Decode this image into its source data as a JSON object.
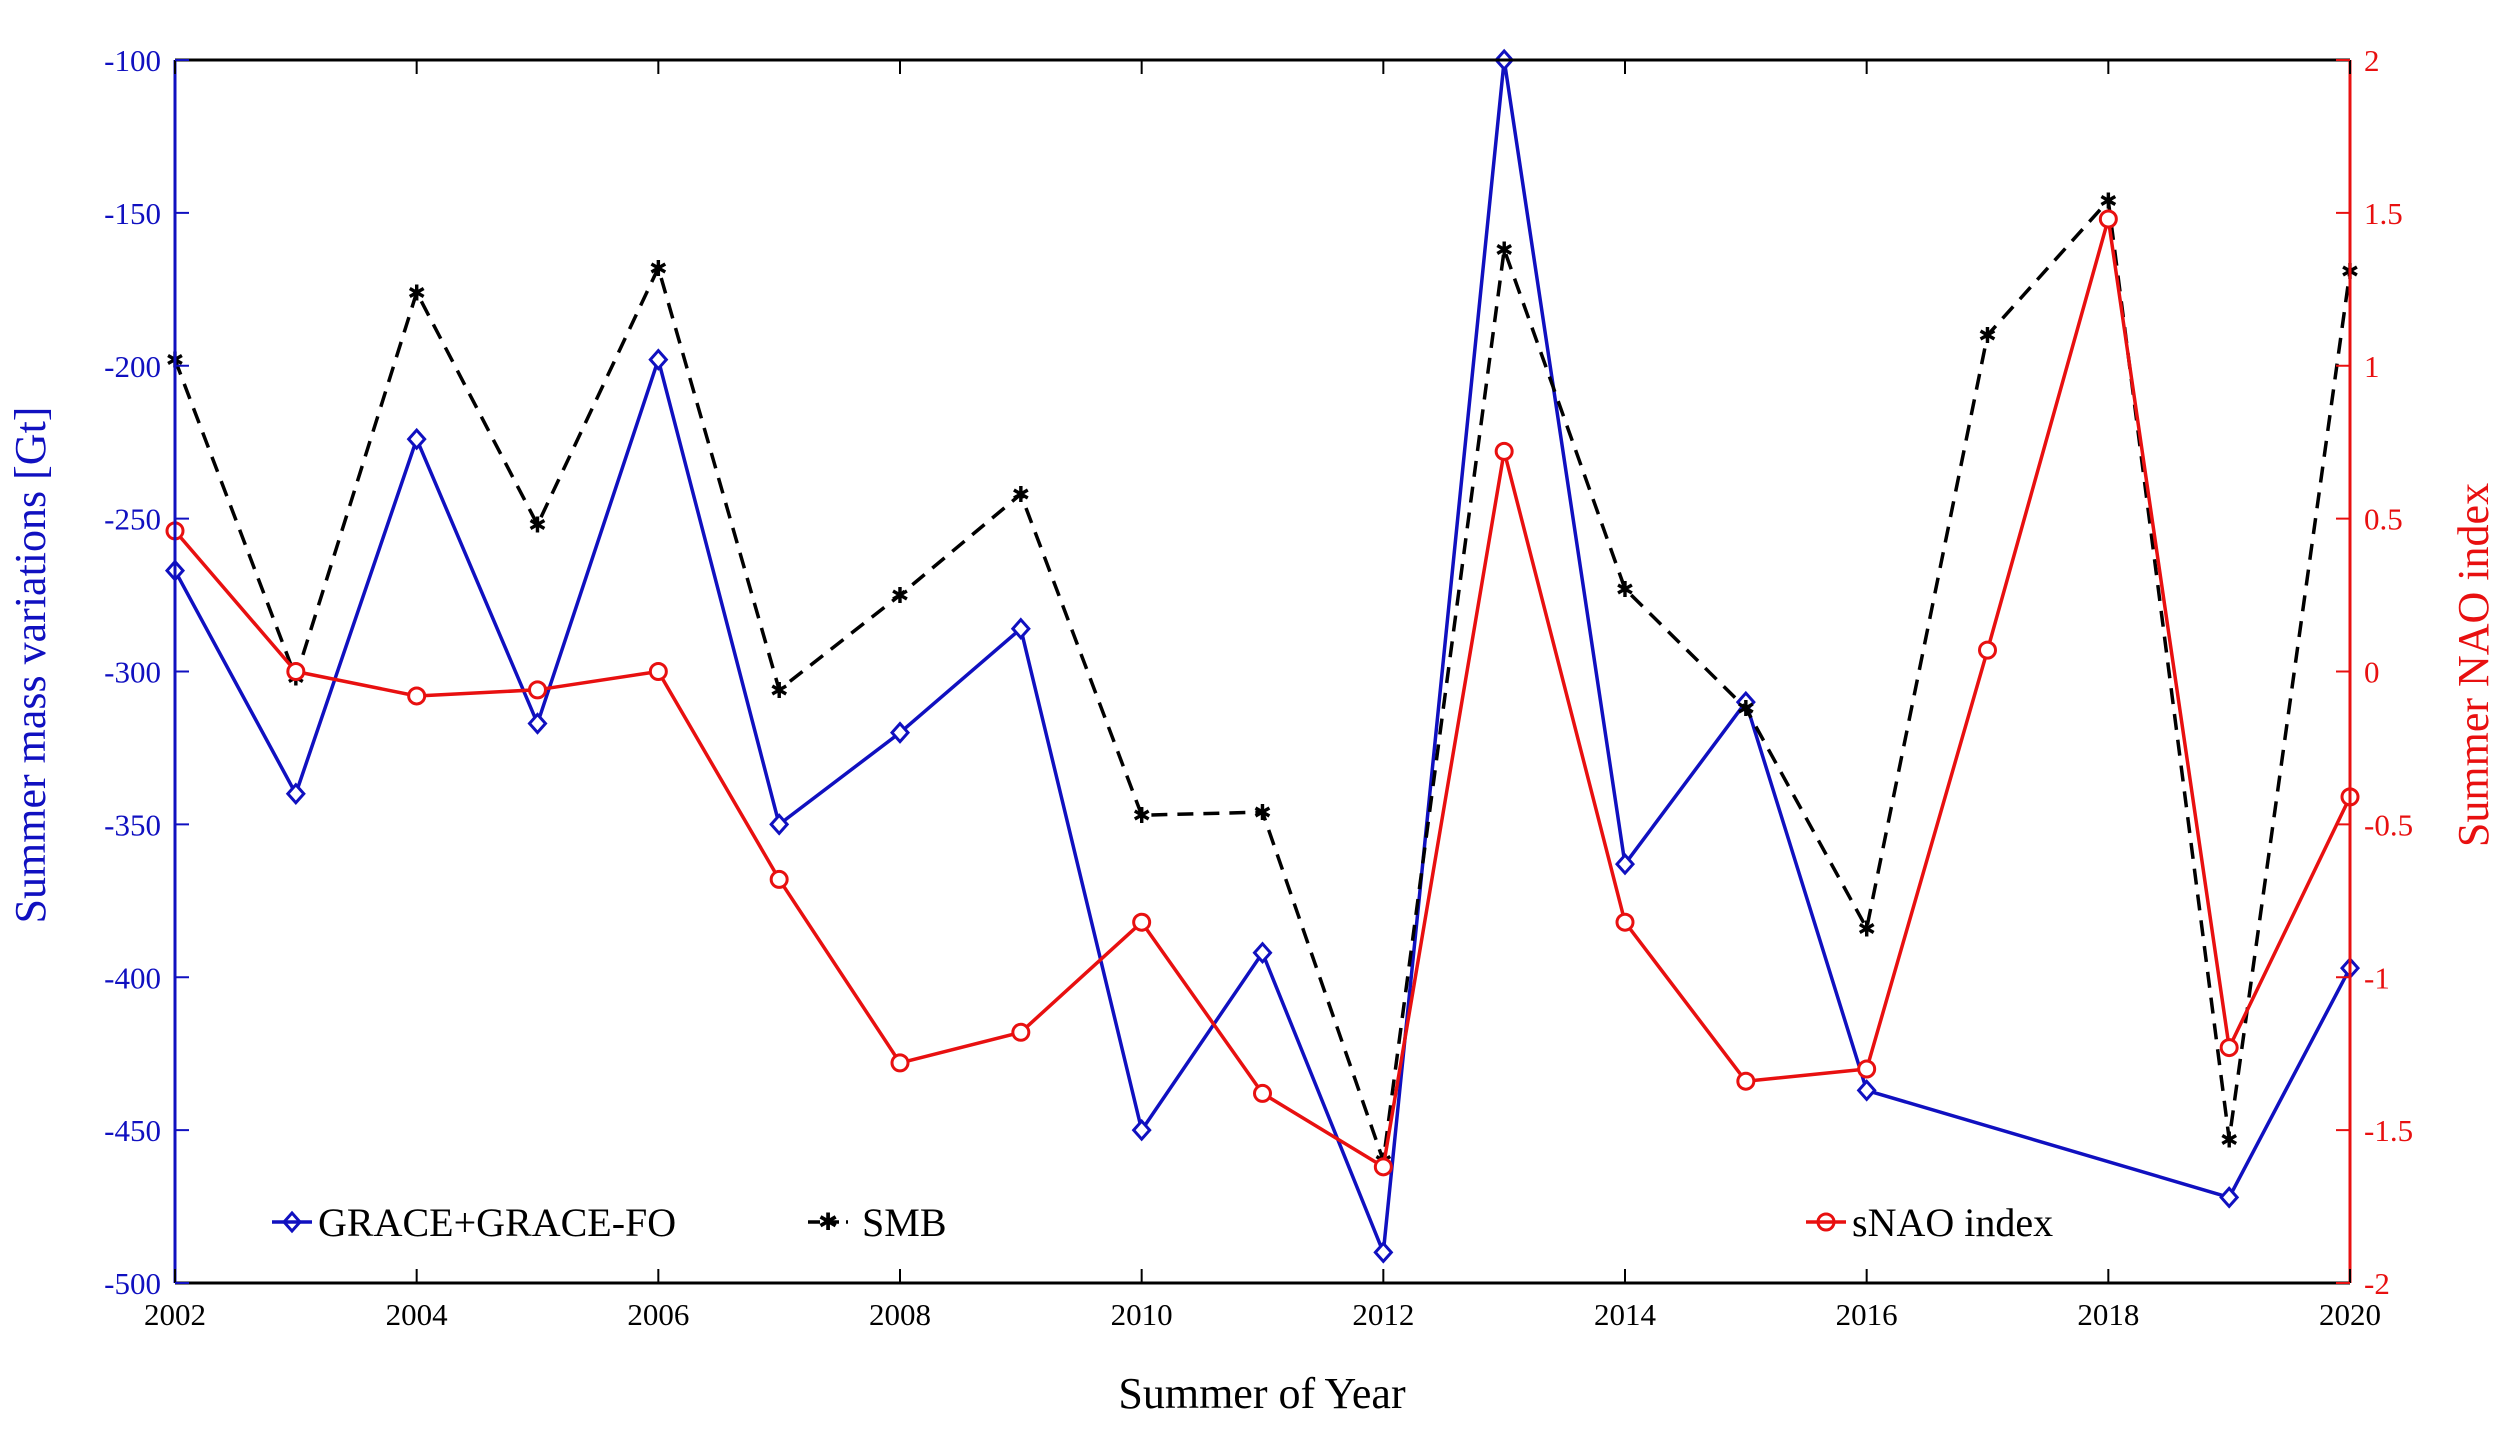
{
  "chart_data": {
    "type": "line",
    "xlabel": "Summer of Year",
    "ylabel_left": "Summer mass variations [Gt]",
    "ylabel_right": "Summer NAO index",
    "xlim": [
      2002,
      2020
    ],
    "ylim_left": [
      -500,
      -100
    ],
    "ylim_right": [
      -2,
      2
    ],
    "grid": false,
    "x_ticks": [
      "2002",
      "2004",
      "2006",
      "2008",
      "2010",
      "2012",
      "2014",
      "2016",
      "2018",
      "2020"
    ],
    "y_left_ticks": [
      "-100",
      "-150",
      "-200",
      "-250",
      "-300",
      "-350",
      "-400",
      "-450",
      "-500"
    ],
    "y_right_ticks": [
      "2",
      "1.5",
      "1",
      "0.5",
      "0",
      "-0.5",
      "-1",
      "-1.5",
      "-2"
    ],
    "x": [
      2002,
      2003,
      2004,
      2005,
      2006,
      2007,
      2008,
      2009,
      2010,
      2011,
      2012,
      2013,
      2014,
      2015,
      2016,
      2017,
      2018,
      2019,
      2020
    ],
    "series": [
      {
        "name": "GRACE+GRACE-FO",
        "axis": "left",
        "color": "#1010c0",
        "marker": "diamond",
        "line_style": "solid",
        "values": [
          -267,
          -340,
          -224,
          -317,
          -198,
          -350,
          -320,
          -286,
          -450,
          -392,
          -490,
          -100,
          -363,
          -310,
          -437,
          null,
          null,
          -472,
          -397
        ]
      },
      {
        "name": "SMB",
        "axis": "left",
        "color": "#000000",
        "marker": "star",
        "line_style": "dashed",
        "values": [
          -198,
          -302,
          -176,
          -252,
          -168,
          -306,
          -275,
          -242,
          -347,
          -346,
          -460,
          -162,
          -273,
          -312,
          -384,
          -190,
          -146,
          -453,
          -169
        ]
      },
      {
        "name": "sNAO index",
        "axis": "right",
        "color": "#e81010",
        "marker": "circle",
        "line_style": "solid",
        "values": [
          0.46,
          0.0,
          -0.08,
          -0.06,
          0.0,
          -0.68,
          -1.28,
          -1.18,
          -0.82,
          -1.38,
          -1.62,
          0.72,
          -0.82,
          -1.34,
          -1.3,
          0.07,
          1.48,
          -1.23,
          -0.41
        ]
      }
    ],
    "legend": {
      "left_entries": [
        "GRACE+GRACE-FO",
        "SMB"
      ],
      "right_entries": [
        "sNAO index"
      ],
      "placement": "bottom"
    },
    "colors": {
      "left_axis": "#1010c0",
      "right_axis": "#e81010",
      "frame": "#000000"
    }
  }
}
